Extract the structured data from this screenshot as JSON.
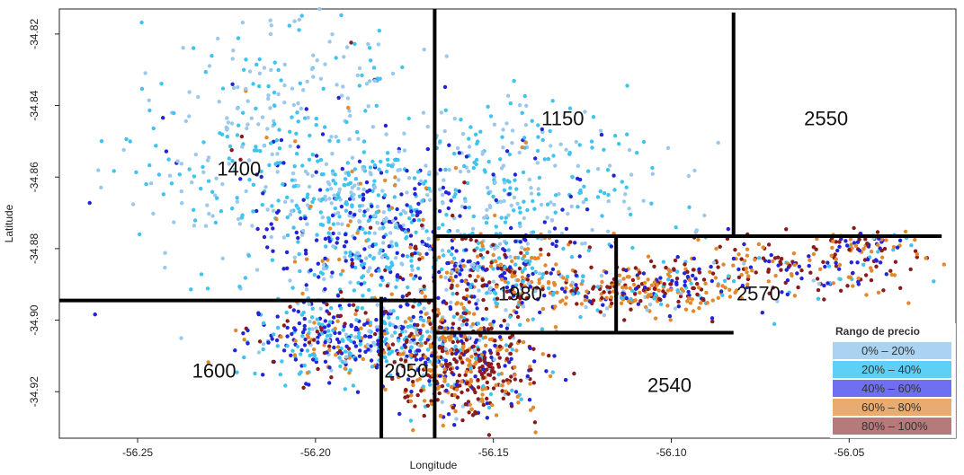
{
  "chart_data": {
    "type": "scatter",
    "xlabel": "Longitude",
    "ylabel": "Latitude",
    "xlim": [
      -56.272,
      -56.02
    ],
    "ylim": [
      -34.933,
      -34.813
    ],
    "x_ticks": [
      -56.25,
      -56.2,
      -56.15,
      -56.1,
      -56.05
    ],
    "x_tick_labels": [
      "-56.25",
      "-56.20",
      "-56.15",
      "-56.10",
      "-56.05"
    ],
    "y_ticks": [
      -34.82,
      -34.84,
      -34.86,
      -34.88,
      -34.9,
      -34.92
    ],
    "y_tick_labels": [
      "-34.82",
      "-34.84",
      "-34.86",
      "-34.88",
      "-34.90",
      "-34.92"
    ],
    "legend": {
      "title": "Rango de precio",
      "placement": "bottom-right",
      "entries": [
        {
          "label": "0% – 20%",
          "color": "#a9d3f0"
        },
        {
          "label": "20% – 40%",
          "color": "#5fd0f5"
        },
        {
          "label": "40% – 60%",
          "color": "#6f6ff2"
        },
        {
          "label": "60% – 80%",
          "color": "#e9ab6f"
        },
        {
          "label": "80% – 100%",
          "color": "#b77a7a"
        }
      ]
    },
    "point_colors": [
      "#9cc8ec",
      "#3fc3ef",
      "#2323d8",
      "#e3892c",
      "#8b1a1a"
    ],
    "partition_lines": [
      {
        "x1": -56.1665,
        "y1": -34.813,
        "x2": -56.1665,
        "y2": -34.933
      },
      {
        "x1": -56.272,
        "y1": -34.8945,
        "x2": -56.1665,
        "y2": -34.8945
      },
      {
        "x1": -56.1815,
        "y1": -34.8935,
        "x2": -56.1815,
        "y2": -34.933
      },
      {
        "x1": -56.1665,
        "y1": -34.8765,
        "x2": -56.024,
        "y2": -34.8765
      },
      {
        "x1": -56.0825,
        "y1": -34.814,
        "x2": -56.0825,
        "y2": -34.8765
      },
      {
        "x1": -56.1665,
        "y1": -34.9035,
        "x2": -56.0825,
        "y2": -34.9035
      },
      {
        "x1": -56.1155,
        "y1": -34.8765,
        "x2": -56.1155,
        "y2": -34.9035
      }
    ],
    "region_values": [
      {
        "label": "1400",
        "x": -56.2215,
        "y": -34.8575
      },
      {
        "label": "1150",
        "x": -56.1305,
        "y": -34.8435
      },
      {
        "label": "2550",
        "x": -56.0565,
        "y": -34.8435
      },
      {
        "label": "1980",
        "x": -56.1425,
        "y": -34.8925
      },
      {
        "label": "2570",
        "x": -56.0755,
        "y": -34.8925
      },
      {
        "label": "1600",
        "x": -56.2285,
        "y": -34.914
      },
      {
        "label": "2050",
        "x": -56.1745,
        "y": -34.914
      },
      {
        "label": "2540",
        "x": -56.1005,
        "y": -34.918
      }
    ],
    "point_clusters": [
      {
        "cx": -56.215,
        "cy": -34.855,
        "sx": 0.022,
        "sy": 0.015,
        "n": 260,
        "w": [
          0.45,
          0.45,
          0.08,
          0.01,
          0.01
        ]
      },
      {
        "cx": -56.21,
        "cy": -34.83,
        "sx": 0.018,
        "sy": 0.012,
        "n": 90,
        "w": [
          0.5,
          0.42,
          0.06,
          0.01,
          0.01
        ]
      },
      {
        "cx": -56.185,
        "cy": -34.875,
        "sx": 0.015,
        "sy": 0.012,
        "n": 520,
        "w": [
          0.22,
          0.42,
          0.28,
          0.06,
          0.02
        ]
      },
      {
        "cx": -56.145,
        "cy": -34.862,
        "sx": 0.02,
        "sy": 0.012,
        "n": 300,
        "w": [
          0.42,
          0.47,
          0.09,
          0.01,
          0.01
        ]
      },
      {
        "cx": -56.15,
        "cy": -34.887,
        "sx": 0.013,
        "sy": 0.006,
        "n": 320,
        "w": [
          0.08,
          0.18,
          0.3,
          0.24,
          0.2
        ]
      },
      {
        "cx": -56.19,
        "cy": -34.906,
        "sx": 0.015,
        "sy": 0.005,
        "n": 400,
        "w": [
          0.12,
          0.36,
          0.36,
          0.1,
          0.06
        ]
      },
      {
        "cx": -56.158,
        "cy": -34.912,
        "sx": 0.011,
        "sy": 0.008,
        "n": 520,
        "w": [
          0.05,
          0.08,
          0.17,
          0.32,
          0.38
        ]
      },
      {
        "cx": -56.112,
        "cy": -34.892,
        "sx": 0.016,
        "sy": 0.003,
        "n": 280,
        "w": [
          0.03,
          0.1,
          0.2,
          0.37,
          0.3
        ]
      },
      {
        "cx": -56.07,
        "cy": -34.885,
        "sx": 0.022,
        "sy": 0.004,
        "n": 220,
        "w": [
          0.03,
          0.08,
          0.2,
          0.37,
          0.32
        ]
      },
      {
        "cx": -56.045,
        "cy": -34.878,
        "sx": 0.007,
        "sy": 0.002,
        "n": 60,
        "w": [
          0.02,
          0.08,
          0.25,
          0.35,
          0.3
        ]
      }
    ]
  }
}
